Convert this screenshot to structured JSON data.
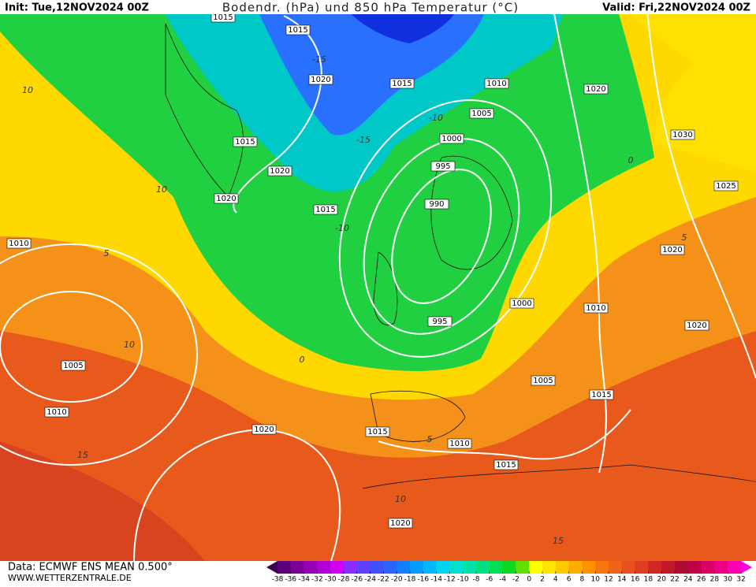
{
  "header": {
    "init": "Init: Tue,12NOV2024 00Z",
    "title": "Bodendr. (hPa) und 850 hPa Temperatur (°C)",
    "valid": "Valid: Fri,22NOV2024 00Z"
  },
  "footer": {
    "data": "Data: ECMWF ENS MEAN 0.500°",
    "site": "WWW.WETTERZENTRALE.DE"
  },
  "isobar_labels": [
    1015,
    1015,
    1020,
    1015,
    1010,
    1020,
    1005,
    1000,
    995,
    1030,
    1015,
    1020,
    1020,
    1015,
    990,
    1025,
    1010,
    1020,
    1000,
    1010,
    995,
    1020,
    1005,
    1005,
    1015,
    1010,
    1020,
    1015,
    1010,
    1015,
    1020
  ],
  "isotherm_labels": [
    -15,
    -15,
    -10,
    -10,
    10,
    10,
    5,
    10,
    0,
    15,
    5,
    10,
    15,
    5,
    0
  ],
  "colorbar": {
    "ticks": [
      -38,
      -36,
      -34,
      -32,
      -30,
      -28,
      -26,
      -24,
      -22,
      -20,
      -18,
      -16,
      -14,
      -12,
      -10,
      -8,
      -6,
      -4,
      -2,
      0,
      2,
      4,
      6,
      8,
      10,
      12,
      14,
      16,
      18,
      20,
      22,
      24,
      26,
      28,
      30,
      32
    ],
    "colors": [
      "#3c0050",
      "#5a0078",
      "#7a0098",
      "#9800b8",
      "#b400d8",
      "#d000f0",
      "#8a2cff",
      "#6040ff",
      "#4050ff",
      "#2a64ff",
      "#1080ff",
      "#009cff",
      "#00b8ff",
      "#00d4f0",
      "#00e0d0",
      "#00e0a8",
      "#00e080",
      "#00e050",
      "#10d820",
      "#60e000",
      "#ffff00",
      "#ffe400",
      "#ffc800",
      "#ffac00",
      "#ff9000",
      "#f87810",
      "#f06418",
      "#e85020",
      "#e03c20",
      "#d02820",
      "#c01828",
      "#b00c30",
      "#c00048",
      "#d80064",
      "#ee0084",
      "#ff00b0",
      "#ff00e0"
    ]
  }
}
